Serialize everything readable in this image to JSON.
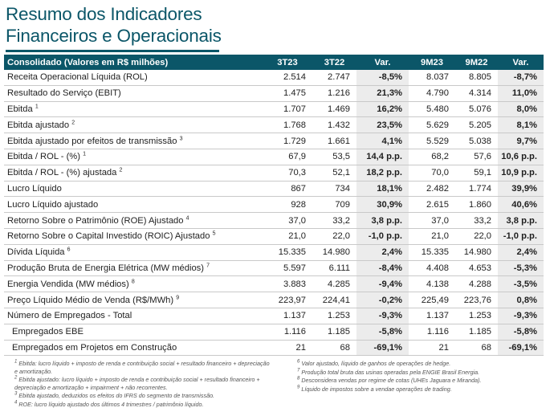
{
  "title_line1": "Resumo dos Indicadores",
  "title_line2": "Financeiros e Operacionais",
  "header": [
    "Consolidado (Valores em R$ milhões)",
    "3T23",
    "3T22",
    "Var.",
    "9M23",
    "9M22",
    "Var."
  ],
  "rows": [
    {
      "label": "Receita Operacional Líquida (ROL)",
      "sup": "",
      "v": [
        "2.514",
        "2.747",
        "-8,5%",
        "8.037",
        "8.805",
        "-8,7%"
      ]
    },
    {
      "label": "Resultado do Serviço (EBIT)",
      "sup": "",
      "v": [
        "1.475",
        "1.216",
        "21,3%",
        "4.790",
        "4.314",
        "11,0%"
      ]
    },
    {
      "label": "Ebitda ",
      "sup": "1",
      "v": [
        "1.707",
        "1.469",
        "16,2%",
        "5.480",
        "5.076",
        "8,0%"
      ]
    },
    {
      "label": "Ebitda ajustado ",
      "sup": "2",
      "v": [
        "1.768",
        "1.432",
        "23,5%",
        "5.629",
        "5.205",
        "8,1%"
      ]
    },
    {
      "label": "Ebitda ajustado por efeitos de transmissão ",
      "sup": "3",
      "v": [
        "1.729",
        "1.661",
        "4,1%",
        "5.529",
        "5.038",
        "9,7%"
      ]
    },
    {
      "label": "Ebitda / ROL - (%) ",
      "sup": "1",
      "v": [
        "67,9",
        "53,5",
        "14,4 p.p.",
        "68,2",
        "57,6",
        "10,6 p.p."
      ]
    },
    {
      "label": "Ebitda / ROL - (%) ajustada ",
      "sup": "2",
      "v": [
        "70,3",
        "52,1",
        "18,2 p.p.",
        "70,0",
        "59,1",
        "10,9 p.p."
      ]
    },
    {
      "label": "Lucro Líquido",
      "sup": "",
      "v": [
        "867",
        "734",
        "18,1%",
        "2.482",
        "1.774",
        "39,9%"
      ]
    },
    {
      "label": "Lucro Líquido ajustado",
      "sup": "",
      "v": [
        "928",
        "709",
        "30,9%",
        "2.615",
        "1.860",
        "40,6%"
      ]
    },
    {
      "label": "Retorno Sobre o Patrimônio (ROE) Ajustado ",
      "sup": "4",
      "v": [
        "37,0",
        "33,2",
        "3,8 p.p.",
        "37,0",
        "33,2",
        "3,8 p.p."
      ]
    },
    {
      "label": "Retorno Sobre o Capital Investido (ROIC) Ajustado ",
      "sup": "5",
      "v": [
        "21,0",
        "22,0",
        "-1,0 p.p.",
        "21,0",
        "22,0",
        "-1,0 p.p."
      ]
    },
    {
      "label": "Dívida Líquida ",
      "sup": "6",
      "v": [
        "15.335",
        "14.980",
        "2,4%",
        "15.335",
        "14.980",
        "2,4%"
      ]
    },
    {
      "label": "Produção Bruta de Energia Elétrica (MW médios) ",
      "sup": "7",
      "v": [
        "5.597",
        "6.111",
        "-8,4%",
        "4.408",
        "4.653",
        "-5,3%"
      ]
    },
    {
      "label": "Energia Vendida (MW médios) ",
      "sup": "8",
      "v": [
        "3.883",
        "4.285",
        "-9,4%",
        "4.138",
        "4.288",
        "-3,5%"
      ]
    },
    {
      "label": "Preço Líquido Médio de Venda (R$/MWh) ",
      "sup": "9",
      "v": [
        "223,97",
        "224,41",
        "-0,2%",
        "225,49",
        "223,76",
        "0,8%"
      ]
    },
    {
      "label": "Número de Empregados - Total",
      "sup": "",
      "v": [
        "1.137",
        "1.253",
        "-9,3%",
        "1.137",
        "1.253",
        "-9,3%"
      ]
    },
    {
      "label": "Empregados EBE",
      "sup": "",
      "indent": true,
      "v": [
        "1.116",
        "1.185",
        "-5,8%",
        "1.116",
        "1.185",
        "-5,8%"
      ]
    },
    {
      "label": "Empregados em Projetos em Construção",
      "sup": "",
      "indent": true,
      "v": [
        "21",
        "68",
        "-69,1%",
        "21",
        "68",
        "-69,1%"
      ]
    }
  ],
  "notes_left": [
    {
      "n": "1",
      "t": " Ebitda: lucro líquido + imposto de renda e contribuição social + resultado financeiro + depreciação e amortização."
    },
    {
      "n": "2",
      "t": " Ebitda ajustado: lucro líquido + imposto de renda e contribuição social + resultado financeiro + depreciação e amortização + impairment + não recorrentes."
    },
    {
      "n": "3",
      "t": " Ebitda ajustado, deduzidos os efeitos do IFRS do segmento de transmissão."
    },
    {
      "n": "4",
      "t": " ROE: lucro líquido ajustado dos últimos 4 trimestres / patrimônio líquido."
    }
  ],
  "notes_right": [
    {
      "n": "6",
      "t": " Valor ajustado, líquido de ganhos de operações de hedge."
    },
    {
      "n": "7",
      "t": " Produção total bruta das usinas operadas pela ENGIE Brasil Energia."
    },
    {
      "n": "8",
      "t": " Desconsidera vendas por regime de cotas (UHEs Jaguara e Miranda)."
    },
    {
      "n": "9",
      "t": " Líquido de impostos sobre a vendae operações de trading."
    }
  ]
}
